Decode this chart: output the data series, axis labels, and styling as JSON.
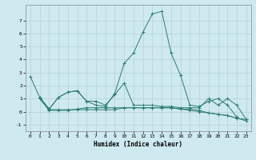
{
  "xlabel": "Humidex (Indice chaleur)",
  "bg_color": "#cfe9f0",
  "grid_color": "#b0d4cc",
  "line_color": "#2d7d6e",
  "xlim": [
    -0.5,
    23.5
  ],
  "ylim": [
    -1.5,
    8.2
  ],
  "yticks": [
    -1,
    0,
    1,
    2,
    3,
    4,
    5,
    6,
    7
  ],
  "xticks": [
    0,
    1,
    2,
    3,
    4,
    5,
    6,
    7,
    8,
    9,
    10,
    11,
    12,
    13,
    14,
    15,
    16,
    17,
    18,
    19,
    20,
    21,
    22,
    23
  ],
  "lines": [
    {
      "x": [
        0,
        1,
        2,
        3,
        4,
        5,
        6,
        7,
        8,
        9,
        10,
        11,
        12,
        13,
        14,
        15,
        16,
        17,
        18,
        19,
        20,
        21,
        22
      ],
      "y": [
        2.7,
        1.1,
        0.2,
        1.1,
        1.5,
        1.6,
        0.8,
        0.5,
        0.4,
        1.4,
        3.7,
        4.5,
        6.1,
        7.5,
        7.7,
        4.5,
        2.8,
        0.5,
        0.4,
        0.8,
        1.0,
        0.5,
        -0.4
      ]
    },
    {
      "x": [
        1,
        2,
        3,
        4,
        5,
        6,
        7,
        8,
        9,
        10,
        11,
        12,
        13,
        14,
        15,
        16,
        17,
        18,
        19,
        20,
        21,
        22,
        23
      ],
      "y": [
        1.1,
        0.2,
        1.1,
        1.5,
        1.6,
        0.8,
        0.8,
        0.5,
        1.3,
        2.2,
        0.5,
        0.5,
        0.5,
        0.4,
        0.4,
        0.3,
        0.3,
        0.3,
        1.0,
        0.5,
        1.0,
        0.5,
        -0.6
      ]
    },
    {
      "x": [
        1,
        2,
        3,
        4,
        5,
        6,
        7,
        8,
        9,
        10,
        11,
        12,
        13,
        14,
        15,
        16,
        17,
        18,
        19,
        20,
        21,
        22,
        23
      ],
      "y": [
        1.1,
        0.15,
        0.15,
        0.15,
        0.15,
        0.15,
        0.15,
        0.15,
        0.15,
        0.3,
        0.3,
        0.3,
        0.3,
        0.3,
        0.3,
        0.2,
        0.1,
        0.0,
        -0.1,
        -0.2,
        -0.3,
        -0.5,
        -0.7
      ]
    },
    {
      "x": [
        1,
        2,
        3,
        4,
        5,
        6,
        7,
        8,
        9,
        10,
        11,
        12,
        13,
        14,
        15,
        16,
        17,
        18,
        19,
        20,
        21,
        22,
        23
      ],
      "y": [
        1.0,
        0.1,
        0.1,
        0.1,
        0.2,
        0.3,
        0.3,
        0.3,
        0.3,
        0.3,
        0.3,
        0.3,
        0.3,
        0.3,
        0.3,
        0.2,
        0.2,
        0.1,
        -0.1,
        -0.2,
        -0.3,
        -0.5,
        -0.6
      ]
    }
  ]
}
